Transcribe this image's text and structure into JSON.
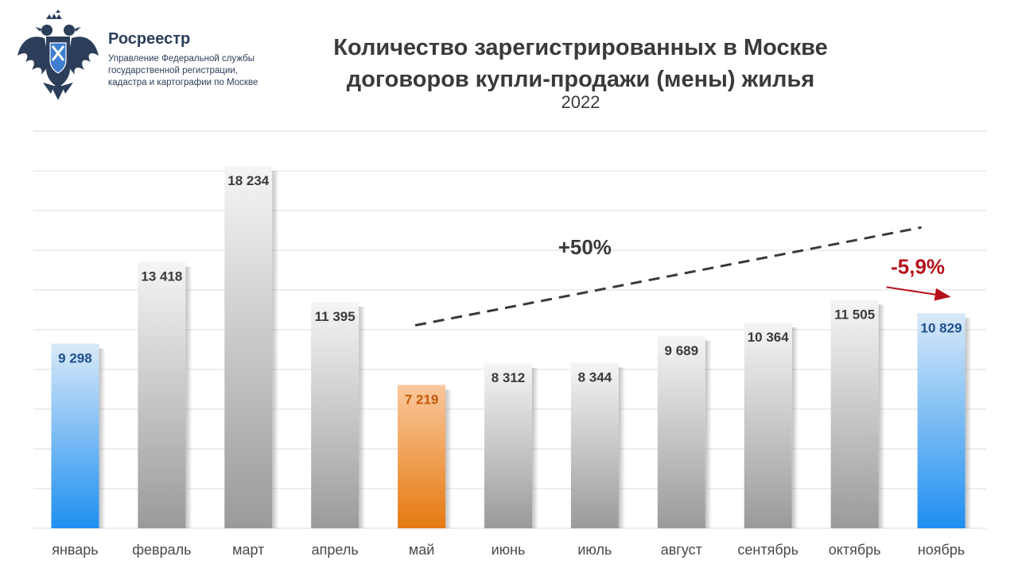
{
  "brand": {
    "name": "Росреестр",
    "subtitle_lines": [
      "Управление Федеральной службы",
      "государственной регистрации,",
      "кадастра и картографии по Москве"
    ]
  },
  "chart_data": {
    "type": "bar",
    "title_lines": [
      "Количество зарегистрированных в Москве",
      "договоров купли-продажи (мены) жилья"
    ],
    "subtitle": "2022",
    "categories": [
      "январь",
      "февраль",
      "март",
      "апрель",
      "май",
      "июнь",
      "июль",
      "август",
      "сентябрь",
      "октябрь",
      "ноябрь"
    ],
    "values": [
      9298,
      13418,
      18234,
      11395,
      7219,
      8312,
      8344,
      9689,
      10364,
      11505,
      10829
    ],
    "value_labels": [
      "9 298",
      "13 418",
      "18 234",
      "11 395",
      "7 219",
      "8 312",
      "8 344",
      "9 689",
      "10 364",
      "11 505",
      "10 829"
    ],
    "highlight": {
      "январь": "blue",
      "май": "orange",
      "ноябрь": "blue"
    },
    "ylim": [
      0,
      20000
    ],
    "grid": true,
    "annotations": [
      {
        "text": "+50%",
        "type": "dashed-trend",
        "from_category": "май",
        "to_category": "ноябрь"
      },
      {
        "text": "-5,9%",
        "type": "arrow",
        "from_category": "октябрь",
        "to_category": "ноябрь",
        "color": "#b5121b"
      }
    ]
  },
  "colors": {
    "bar_gray_top": "#f4f4f4",
    "bar_gray_bottom": "#9a9a9a",
    "bar_blue_top": "#d8e9f8",
    "bar_blue_bottom": "#1f8ff0",
    "bar_orange_top": "#fac79c",
    "bar_orange_bottom": "#e57a10",
    "label_blue": "#1f4e8c",
    "label_orange": "#c55a0a",
    "label_gray": "#3a3a3a",
    "grid": "#dcdcdc",
    "negative": "#b5121b"
  }
}
